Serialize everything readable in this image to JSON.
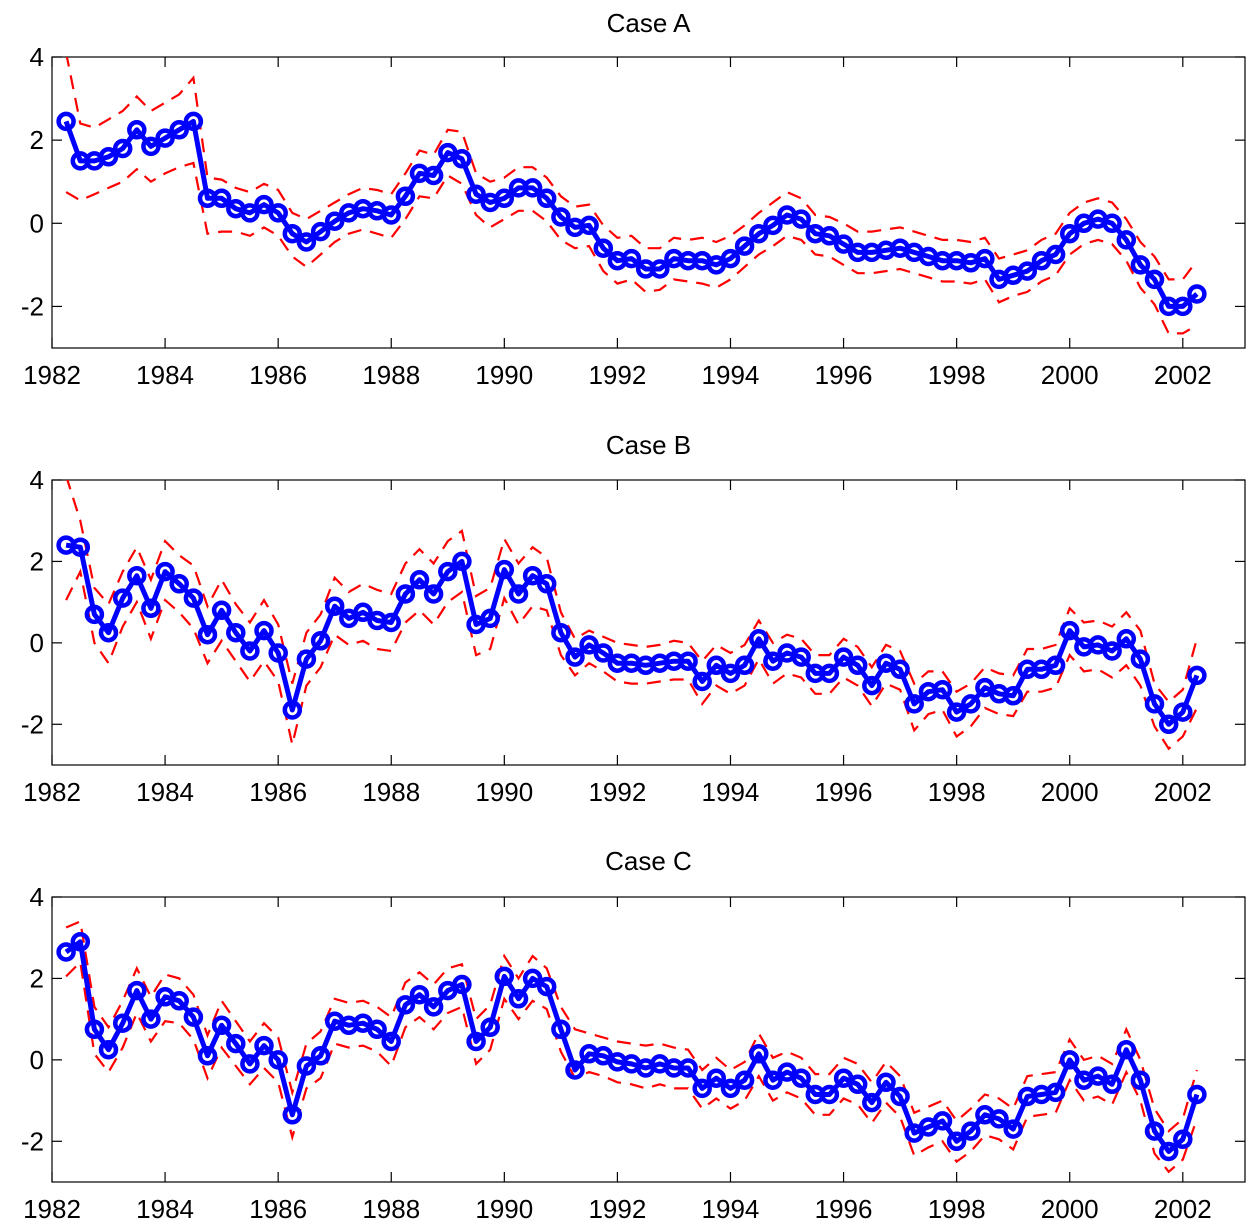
{
  "colors": {
    "series": "#0000ff",
    "bands": "#ff0000",
    "axes": "#000000",
    "background": "#ffffff"
  },
  "chart_data": [
    {
      "type": "line",
      "title": "Case A",
      "xlabel": "",
      "ylabel": "",
      "xlim": [
        1982,
        2003.1
      ],
      "ylim": [
        -3,
        4
      ],
      "xticks": [
        1982,
        1984,
        1986,
        1988,
        1990,
        1992,
        1994,
        1996,
        1998,
        2000,
        2002
      ],
      "xtick_labels": [
        "1982",
        "1984",
        "1986",
        "1988",
        "1990",
        "1992",
        "1994",
        "1996",
        "1998",
        "2000",
        "2002"
      ],
      "yticks": [
        4,
        2,
        0,
        -2
      ],
      "ytick_labels": [
        "4",
        "2",
        "0",
        "-2"
      ],
      "grid": false,
      "legend": "none",
      "x_start": 1982.25,
      "x_step": 0.25,
      "series": [
        {
          "role": "estimate",
          "style": "solid-circles",
          "values": [
            2.45,
            1.5,
            1.5,
            1.6,
            1.8,
            2.25,
            1.85,
            2.05,
            2.25,
            2.45,
            0.6,
            0.6,
            0.35,
            0.25,
            0.45,
            0.25,
            -0.25,
            -0.45,
            -0.2,
            0.05,
            0.25,
            0.35,
            0.3,
            0.2,
            0.65,
            1.2,
            1.15,
            1.7,
            1.55,
            0.7,
            0.5,
            0.6,
            0.85,
            0.85,
            0.6,
            0.15,
            -0.1,
            -0.05,
            -0.6,
            -0.9,
            -0.85,
            -1.1,
            -1.1,
            -0.85,
            -0.9,
            -0.9,
            -1.0,
            -0.85,
            -0.55,
            -0.25,
            -0.05,
            0.2,
            0.1,
            -0.25,
            -0.3,
            -0.5,
            -0.7,
            -0.7,
            -0.65,
            -0.6,
            -0.7,
            -0.8,
            -0.9,
            -0.9,
            -0.95,
            -0.85,
            -1.35,
            -1.25,
            -1.15,
            -0.9,
            -0.75,
            -0.25,
            0.0,
            0.1,
            0.0,
            -0.4,
            -1.0,
            -1.35,
            -2.0,
            -2.0,
            -1.7
          ]
        },
        {
          "role": "upper-band",
          "style": "dashed",
          "values": [
            4.1,
            2.4,
            2.3,
            2.5,
            2.7,
            3.05,
            2.7,
            2.9,
            3.1,
            3.5,
            1.1,
            1.05,
            0.85,
            0.75,
            0.95,
            0.8,
            0.25,
            0.1,
            0.3,
            0.5,
            0.7,
            0.85,
            0.8,
            0.7,
            1.2,
            1.75,
            1.65,
            2.25,
            2.2,
            1.2,
            1.0,
            1.1,
            1.35,
            1.35,
            1.1,
            0.65,
            0.4,
            0.45,
            -0.05,
            -0.35,
            -0.3,
            -0.6,
            -0.6,
            -0.35,
            -0.4,
            -0.35,
            -0.45,
            -0.3,
            -0.05,
            0.25,
            0.5,
            0.75,
            0.6,
            0.2,
            0.15,
            0.0,
            -0.2,
            -0.2,
            -0.15,
            -0.1,
            -0.2,
            -0.3,
            -0.4,
            -0.4,
            -0.45,
            -0.35,
            -0.85,
            -0.75,
            -0.65,
            -0.4,
            -0.25,
            0.25,
            0.5,
            0.6,
            0.5,
            0.1,
            -0.45,
            -0.8,
            -1.35,
            -1.35,
            -0.9
          ]
        },
        {
          "role": "lower-band",
          "style": "dashed",
          "values": [
            0.75,
            0.55,
            0.7,
            0.85,
            1.0,
            1.3,
            1.0,
            1.2,
            1.35,
            1.45,
            -0.25,
            -0.2,
            -0.2,
            -0.3,
            -0.1,
            -0.3,
            -0.8,
            -1.05,
            -0.75,
            -0.45,
            -0.25,
            -0.15,
            -0.25,
            -0.35,
            0.1,
            0.65,
            0.6,
            1.15,
            0.95,
            0.2,
            -0.1,
            0.1,
            0.3,
            0.3,
            0.05,
            -0.4,
            -0.6,
            -0.55,
            -1.15,
            -1.45,
            -1.35,
            -1.65,
            -1.6,
            -1.35,
            -1.4,
            -1.45,
            -1.55,
            -1.35,
            -1.05,
            -0.75,
            -0.55,
            -0.3,
            -0.4,
            -0.75,
            -0.8,
            -1.0,
            -1.2,
            -1.2,
            -1.15,
            -1.1,
            -1.2,
            -1.3,
            -1.4,
            -1.4,
            -1.45,
            -1.35,
            -1.9,
            -1.75,
            -1.65,
            -1.4,
            -1.25,
            -0.75,
            -0.5,
            -0.4,
            -0.5,
            -0.9,
            -1.55,
            -1.95,
            -2.65,
            -2.65,
            -2.45
          ]
        }
      ]
    },
    {
      "type": "line",
      "title": "Case B",
      "xlabel": "",
      "ylabel": "",
      "xlim": [
        1982,
        2003.1
      ],
      "ylim": [
        -3,
        4
      ],
      "xticks": [
        1982,
        1984,
        1986,
        1988,
        1990,
        1992,
        1994,
        1996,
        1998,
        2000,
        2002
      ],
      "xtick_labels": [
        "1982",
        "1984",
        "1986",
        "1988",
        "1990",
        "1992",
        "1994",
        "1996",
        "1998",
        "2000",
        "2002"
      ],
      "yticks": [
        4,
        2,
        0,
        -2
      ],
      "ytick_labels": [
        "4",
        "2",
        "0",
        "-2"
      ],
      "grid": false,
      "legend": "none",
      "x_start": 1982.25,
      "x_step": 0.25,
      "series": [
        {
          "role": "estimate",
          "style": "solid-circles",
          "values": [
            2.4,
            2.35,
            0.7,
            0.25,
            1.1,
            1.65,
            0.85,
            1.75,
            1.45,
            1.1,
            0.2,
            0.8,
            0.25,
            -0.2,
            0.3,
            -0.25,
            -1.65,
            -0.4,
            0.05,
            0.9,
            0.6,
            0.75,
            0.55,
            0.5,
            1.2,
            1.55,
            1.2,
            1.75,
            2.0,
            0.45,
            0.6,
            1.8,
            1.2,
            1.65,
            1.45,
            0.25,
            -0.35,
            -0.05,
            -0.25,
            -0.5,
            -0.5,
            -0.55,
            -0.5,
            -0.45,
            -0.45,
            -0.95,
            -0.55,
            -0.75,
            -0.55,
            0.1,
            -0.45,
            -0.25,
            -0.35,
            -0.75,
            -0.75,
            -0.35,
            -0.55,
            -1.05,
            -0.5,
            -0.65,
            -1.5,
            -1.2,
            -1.15,
            -1.7,
            -1.5,
            -1.1,
            -1.25,
            -1.3,
            -0.65,
            -0.65,
            -0.55,
            0.3,
            -0.1,
            -0.05,
            -0.2,
            0.1,
            -0.4,
            -1.5,
            -2.0,
            -1.7,
            -0.8
          ]
        },
        {
          "role": "upper-band",
          "style": "dashed",
          "values": [
            4.1,
            3.0,
            1.35,
            0.95,
            1.75,
            2.35,
            1.55,
            2.5,
            2.15,
            1.9,
            0.9,
            1.55,
            0.95,
            0.5,
            1.05,
            0.45,
            -1.0,
            0.25,
            0.7,
            1.6,
            1.25,
            1.45,
            1.3,
            1.2,
            1.95,
            2.3,
            1.95,
            2.5,
            2.75,
            1.15,
            1.35,
            2.55,
            1.95,
            2.35,
            2.1,
            0.75,
            0.1,
            0.3,
            0.15,
            0.0,
            -0.05,
            -0.1,
            -0.05,
            0.05,
            0.0,
            -0.45,
            -0.05,
            -0.25,
            -0.05,
            0.55,
            0.0,
            0.2,
            0.1,
            -0.3,
            -0.3,
            0.1,
            -0.1,
            -0.6,
            -0.05,
            -0.2,
            -1.0,
            -0.7,
            -0.7,
            -1.2,
            -1.0,
            -0.6,
            -0.75,
            -0.8,
            -0.15,
            -0.15,
            -0.05,
            0.85,
            0.5,
            0.55,
            0.4,
            0.75,
            0.3,
            -1.0,
            -1.45,
            -1.15,
            0.1
          ]
        },
        {
          "role": "lower-band",
          "style": "dashed",
          "values": [
            1.05,
            1.75,
            0.0,
            -0.5,
            0.4,
            1.0,
            0.1,
            1.05,
            0.75,
            0.35,
            -0.5,
            0.05,
            -0.45,
            -0.95,
            -0.45,
            -0.95,
            -2.5,
            -1.05,
            -0.6,
            0.2,
            -0.05,
            0.05,
            -0.15,
            -0.2,
            0.5,
            0.8,
            0.45,
            1.0,
            1.25,
            -0.3,
            -0.15,
            1.1,
            0.45,
            0.9,
            0.8,
            -0.3,
            -0.8,
            -0.5,
            -0.7,
            -0.95,
            -1.0,
            -1.0,
            -0.95,
            -0.9,
            -0.9,
            -1.5,
            -1.05,
            -1.25,
            -1.05,
            -0.4,
            -1.0,
            -0.75,
            -0.85,
            -1.25,
            -1.25,
            -0.85,
            -1.05,
            -1.55,
            -1.0,
            -1.15,
            -2.15,
            -1.75,
            -1.65,
            -2.3,
            -2.05,
            -1.6,
            -1.75,
            -1.8,
            -1.2,
            -1.2,
            -1.1,
            -0.3,
            -0.7,
            -0.65,
            -0.85,
            -0.55,
            -1.05,
            -2.05,
            -2.6,
            -2.3,
            -1.6
          ]
        }
      ]
    },
    {
      "type": "line",
      "title": "Case C",
      "xlabel": "",
      "ylabel": "",
      "xlim": [
        1982,
        2003.1
      ],
      "ylim": [
        -3,
        4
      ],
      "xticks": [
        1982,
        1984,
        1986,
        1988,
        1990,
        1992,
        1994,
        1996,
        1998,
        2000,
        2002
      ],
      "xtick_labels": [
        "1982",
        "1984",
        "1986",
        "1988",
        "1990",
        "1992",
        "1994",
        "1996",
        "1998",
        "2000",
        "2002"
      ],
      "yticks": [
        4,
        2,
        0,
        -2
      ],
      "ytick_labels": [
        "4",
        "2",
        "0",
        "-2"
      ],
      "grid": false,
      "legend": "none",
      "x_start": 1982.25,
      "x_step": 0.25,
      "series": [
        {
          "role": "estimate",
          "style": "solid-circles",
          "values": [
            2.65,
            2.9,
            0.75,
            0.25,
            0.9,
            1.7,
            1.0,
            1.55,
            1.45,
            1.05,
            0.1,
            0.85,
            0.4,
            -0.1,
            0.35,
            0.0,
            -1.35,
            -0.15,
            0.1,
            0.95,
            0.85,
            0.9,
            0.75,
            0.45,
            1.35,
            1.6,
            1.3,
            1.7,
            1.85,
            0.45,
            0.8,
            2.05,
            1.5,
            2.0,
            1.8,
            0.75,
            -0.25,
            0.15,
            0.1,
            -0.05,
            -0.1,
            -0.2,
            -0.1,
            -0.2,
            -0.2,
            -0.7,
            -0.45,
            -0.7,
            -0.5,
            0.15,
            -0.5,
            -0.3,
            -0.45,
            -0.85,
            -0.85,
            -0.45,
            -0.6,
            -1.05,
            -0.55,
            -0.9,
            -1.8,
            -1.65,
            -1.5,
            -2.0,
            -1.75,
            -1.35,
            -1.45,
            -1.7,
            -0.9,
            -0.85,
            -0.8,
            0.0,
            -0.5,
            -0.4,
            -0.6,
            0.25,
            -0.5,
            -1.75,
            -2.25,
            -1.95,
            -0.85
          ]
        },
        {
          "role": "upper-band",
          "style": "dashed",
          "values": [
            3.25,
            3.4,
            1.3,
            0.8,
            1.45,
            2.25,
            1.55,
            2.1,
            2.0,
            1.6,
            0.6,
            1.45,
            0.95,
            0.45,
            0.9,
            0.55,
            -0.8,
            0.4,
            0.7,
            1.5,
            1.4,
            1.45,
            1.3,
            1.05,
            1.9,
            2.15,
            1.85,
            2.25,
            2.35,
            1.0,
            1.35,
            2.55,
            2.0,
            2.55,
            2.25,
            1.3,
            0.75,
            0.65,
            0.55,
            0.45,
            0.4,
            0.35,
            0.4,
            0.3,
            0.25,
            -0.25,
            0.05,
            -0.25,
            -0.05,
            0.65,
            0.05,
            0.2,
            0.05,
            -0.35,
            -0.35,
            0.05,
            -0.1,
            -0.55,
            -0.05,
            -0.4,
            -1.3,
            -1.15,
            -1.0,
            -1.5,
            -1.2,
            -0.85,
            -0.95,
            -1.2,
            -0.4,
            -0.35,
            -0.3,
            0.5,
            0.0,
            0.1,
            -0.1,
            0.75,
            0.0,
            -1.2,
            -1.75,
            -1.45,
            -0.25
          ]
        },
        {
          "role": "lower-band",
          "style": "dashed",
          "values": [
            2.05,
            2.4,
            0.15,
            -0.3,
            0.3,
            1.15,
            0.45,
            0.95,
            0.9,
            0.5,
            -0.45,
            0.3,
            -0.15,
            -0.6,
            -0.2,
            -0.55,
            -1.9,
            -0.7,
            -0.45,
            0.4,
            0.3,
            0.35,
            0.2,
            -0.15,
            0.8,
            1.05,
            0.75,
            1.15,
            1.3,
            -0.1,
            0.25,
            1.5,
            1.0,
            1.45,
            1.25,
            0.2,
            -0.45,
            -0.3,
            -0.4,
            -0.55,
            -0.6,
            -0.7,
            -0.6,
            -0.7,
            -0.7,
            -1.2,
            -0.95,
            -1.2,
            -1.0,
            -0.4,
            -1.0,
            -0.8,
            -0.95,
            -1.35,
            -1.35,
            -0.95,
            -1.1,
            -1.55,
            -1.05,
            -1.4,
            -2.35,
            -2.15,
            -2.0,
            -2.5,
            -2.25,
            -1.85,
            -1.95,
            -2.2,
            -1.4,
            -1.35,
            -1.3,
            -0.5,
            -1.0,
            -0.9,
            -1.1,
            -0.3,
            -1.0,
            -2.3,
            -2.75,
            -2.45,
            -1.45
          ]
        }
      ]
    }
  ]
}
